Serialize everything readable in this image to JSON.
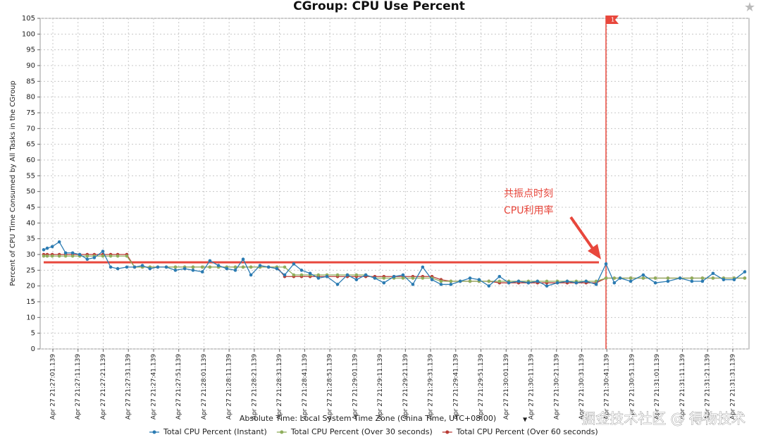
{
  "chart_data": {
    "type": "line",
    "title": "CGroup: CPU Use Percent",
    "y_label": "Percent of CPU Time Consumed by All Tasks in the CGroup",
    "x_label": "Absolute Time: Local System Time Zone (China Time, UTC+08:00)",
    "grid": true,
    "legend": "bottom",
    "xlim": [
      -3.9,
      277.6
    ],
    "ylim": [
      0,
      105
    ],
    "yticks": [
      0,
      5,
      10,
      15,
      20,
      25,
      30,
      35,
      40,
      45,
      50,
      55,
      60,
      65,
      70,
      75,
      80,
      85,
      90,
      95,
      100,
      105
    ],
    "xticks": [
      {
        "value": 1.139,
        "label": "Apr 27 21:27:01.139"
      },
      {
        "value": 11.139,
        "label": "Apr 27 21:27:11.139"
      },
      {
        "value": 21.139,
        "label": "Apr 27 21:27:21.139"
      },
      {
        "value": 31.139,
        "label": "Apr 27 21:27:31.139"
      },
      {
        "value": 41.139,
        "label": "Apr 27 21:27:41.139"
      },
      {
        "value": 51.139,
        "label": "Apr 27 21:27:51.139"
      },
      {
        "value": 61.139,
        "label": "Apr 27 21:28:01.139"
      },
      {
        "value": 71.139,
        "label": "Apr 27 21:28:11.139"
      },
      {
        "value": 81.139,
        "label": "Apr 27 21:28:21.139"
      },
      {
        "value": 91.139,
        "label": "Apr 27 21:28:31.139"
      },
      {
        "value": 101.139,
        "label": "Apr 27 21:28:41.139"
      },
      {
        "value": 111.139,
        "label": "Apr 27 21:28:51.139"
      },
      {
        "value": 121.139,
        "label": "Apr 27 21:29:01.139"
      },
      {
        "value": 131.139,
        "label": "Apr 27 21:29:11.139"
      },
      {
        "value": 141.139,
        "label": "Apr 27 21:29:21.139"
      },
      {
        "value": 151.139,
        "label": "Apr 27 21:29:31.139"
      },
      {
        "value": 161.139,
        "label": "Apr 27 21:29:41.139"
      },
      {
        "value": 171.139,
        "label": "Apr 27 21:29:51.139"
      },
      {
        "value": 181.139,
        "label": "Apr 27 21:30:01.139"
      },
      {
        "value": 191.139,
        "label": "Apr 27 21:30:11.139"
      },
      {
        "value": 201.139,
        "label": "Apr 27 21:30:21.139"
      },
      {
        "value": 211.139,
        "label": "Apr 27 21:30:31.139"
      },
      {
        "value": 221.139,
        "label": "Apr 27 21:30:41.139"
      },
      {
        "value": 231.139,
        "label": "Apr 27 21:30:51.139"
      },
      {
        "value": 241.139,
        "label": "Apr 27 21:31:01.139"
      },
      {
        "value": 251.139,
        "label": "Apr 27 21:31:11.139"
      },
      {
        "value": 261.139,
        "label": "Apr 27 21:31:21.139"
      },
      {
        "value": 271.139,
        "label": "Apr 27 21:31:31.139"
      }
    ],
    "x": [
      -2.5,
      -1.1,
      0.9,
      3.7,
      6.2,
      9.0,
      11.8,
      14.8,
      17.6,
      21.0,
      24.1,
      26.9,
      30.5,
      33.6,
      36.7,
      39.7,
      42.8,
      46.2,
      49.8,
      53.5,
      56.8,
      60.5,
      63.5,
      66.9,
      70.2,
      73.6,
      76.7,
      79.8,
      83.4,
      86.8,
      90.1,
      93.2,
      96.8,
      99.9,
      103.3,
      106.6,
      110.0,
      114.2,
      118.1,
      121.7,
      125.4,
      129.0,
      132.6,
      136.6,
      140.2,
      144.1,
      148.0,
      151.7,
      155.3,
      159.2,
      162.9,
      166.8,
      170.4,
      174.3,
      178.5,
      182.2,
      186.1,
      190.0,
      193.6,
      197.3,
      201.5,
      205.4,
      209.0,
      212.9,
      216.9,
      220.8,
      224.1,
      226.4,
      230.6,
      235.6,
      240.4,
      245.4,
      250.2,
      254.9,
      259.1,
      263.3,
      267.5,
      271.7,
      275.9
    ],
    "series": [
      {
        "name": "Total CPU Percent (Instant)",
        "color": "#2b7bb2",
        "values": [
          31.5,
          32,
          32.5,
          34,
          30.5,
          30.5,
          30,
          28.5,
          29,
          31,
          26,
          25.5,
          26,
          26,
          26.5,
          25.5,
          26,
          26,
          25,
          25.5,
          25,
          24.5,
          28,
          26.5,
          25.5,
          25,
          28.5,
          23.5,
          26.5,
          26,
          25.5,
          23.5,
          27,
          25,
          24,
          22.5,
          23,
          20.5,
          23.5,
          22,
          23.5,
          22.5,
          21,
          23,
          23.5,
          20.5,
          26,
          22,
          20.5,
          20.5,
          21.5,
          22.5,
          22,
          20,
          23,
          21,
          21.5,
          21,
          21.5,
          20,
          21,
          21.5,
          21,
          21.5,
          20.5,
          27,
          21,
          22.5,
          21.5,
          23.5,
          21,
          21.5,
          22.5,
          21.5,
          21.5,
          24,
          22,
          22,
          24.5
        ]
      },
      {
        "name": "Total CPU Percent (Over 30 seconds)",
        "color": "#8fae5c",
        "values": [
          29.5,
          29.5,
          29.5,
          29.5,
          29.5,
          29.5,
          29.5,
          29.5,
          29.5,
          29.5,
          29.5,
          29.5,
          29.5,
          26,
          26,
          26,
          26,
          26,
          26,
          26,
          26,
          26,
          26,
          26,
          26,
          26,
          26,
          26,
          26,
          26,
          26,
          26,
          23.5,
          23.5,
          23.5,
          23.5,
          23.5,
          23.5,
          23.5,
          23.5,
          23.5,
          22.5,
          22.5,
          22.5,
          22.5,
          22.5,
          22.5,
          22.5,
          21.5,
          21.5,
          21.5,
          21.5,
          21.5,
          21.5,
          21.5,
          21.5,
          21.5,
          21.5,
          21.5,
          21.5,
          21.5,
          21.5,
          21.5,
          21.5,
          21.5,
          22.5,
          22.5,
          22.5,
          22.5,
          22.5,
          22.5,
          22.5,
          22.5,
          22.5,
          22.5,
          22.5,
          22.5,
          22.5,
          22.5
        ]
      },
      {
        "name": "Total CPU Percent (Over 60 seconds)",
        "color": "#b83b35",
        "values": [
          30,
          30,
          30,
          30,
          30,
          30,
          30,
          30,
          30,
          30,
          30,
          30,
          30,
          26,
          26,
          26,
          26,
          26,
          26,
          26,
          26,
          26,
          26,
          26,
          26,
          26,
          26,
          26,
          26,
          26,
          26,
          23,
          23,
          23,
          23,
          23,
          23,
          23,
          23,
          23,
          23,
          23,
          23,
          23,
          23,
          23,
          23,
          23,
          22,
          21.5,
          21.5,
          21.5,
          21.5,
          21.5,
          21,
          21,
          21,
          21,
          21,
          21,
          21,
          21,
          21,
          21,
          21,
          22.5,
          22.5,
          22.5,
          22.5,
          22.5,
          22.5,
          22.5,
          22.5,
          22.5,
          22.5,
          22.5,
          22.5,
          22.5,
          22.5
        ]
      }
    ],
    "reference_line": {
      "y": 27.5,
      "color": "#e8473c"
    },
    "event_marker": {
      "x": 220.8,
      "label": "1",
      "color": "#e8473c"
    },
    "annotation": [
      "共振点时刻",
      "CPU利用率"
    ],
    "watermark": "掘金技术社区 @ 得物技术"
  }
}
